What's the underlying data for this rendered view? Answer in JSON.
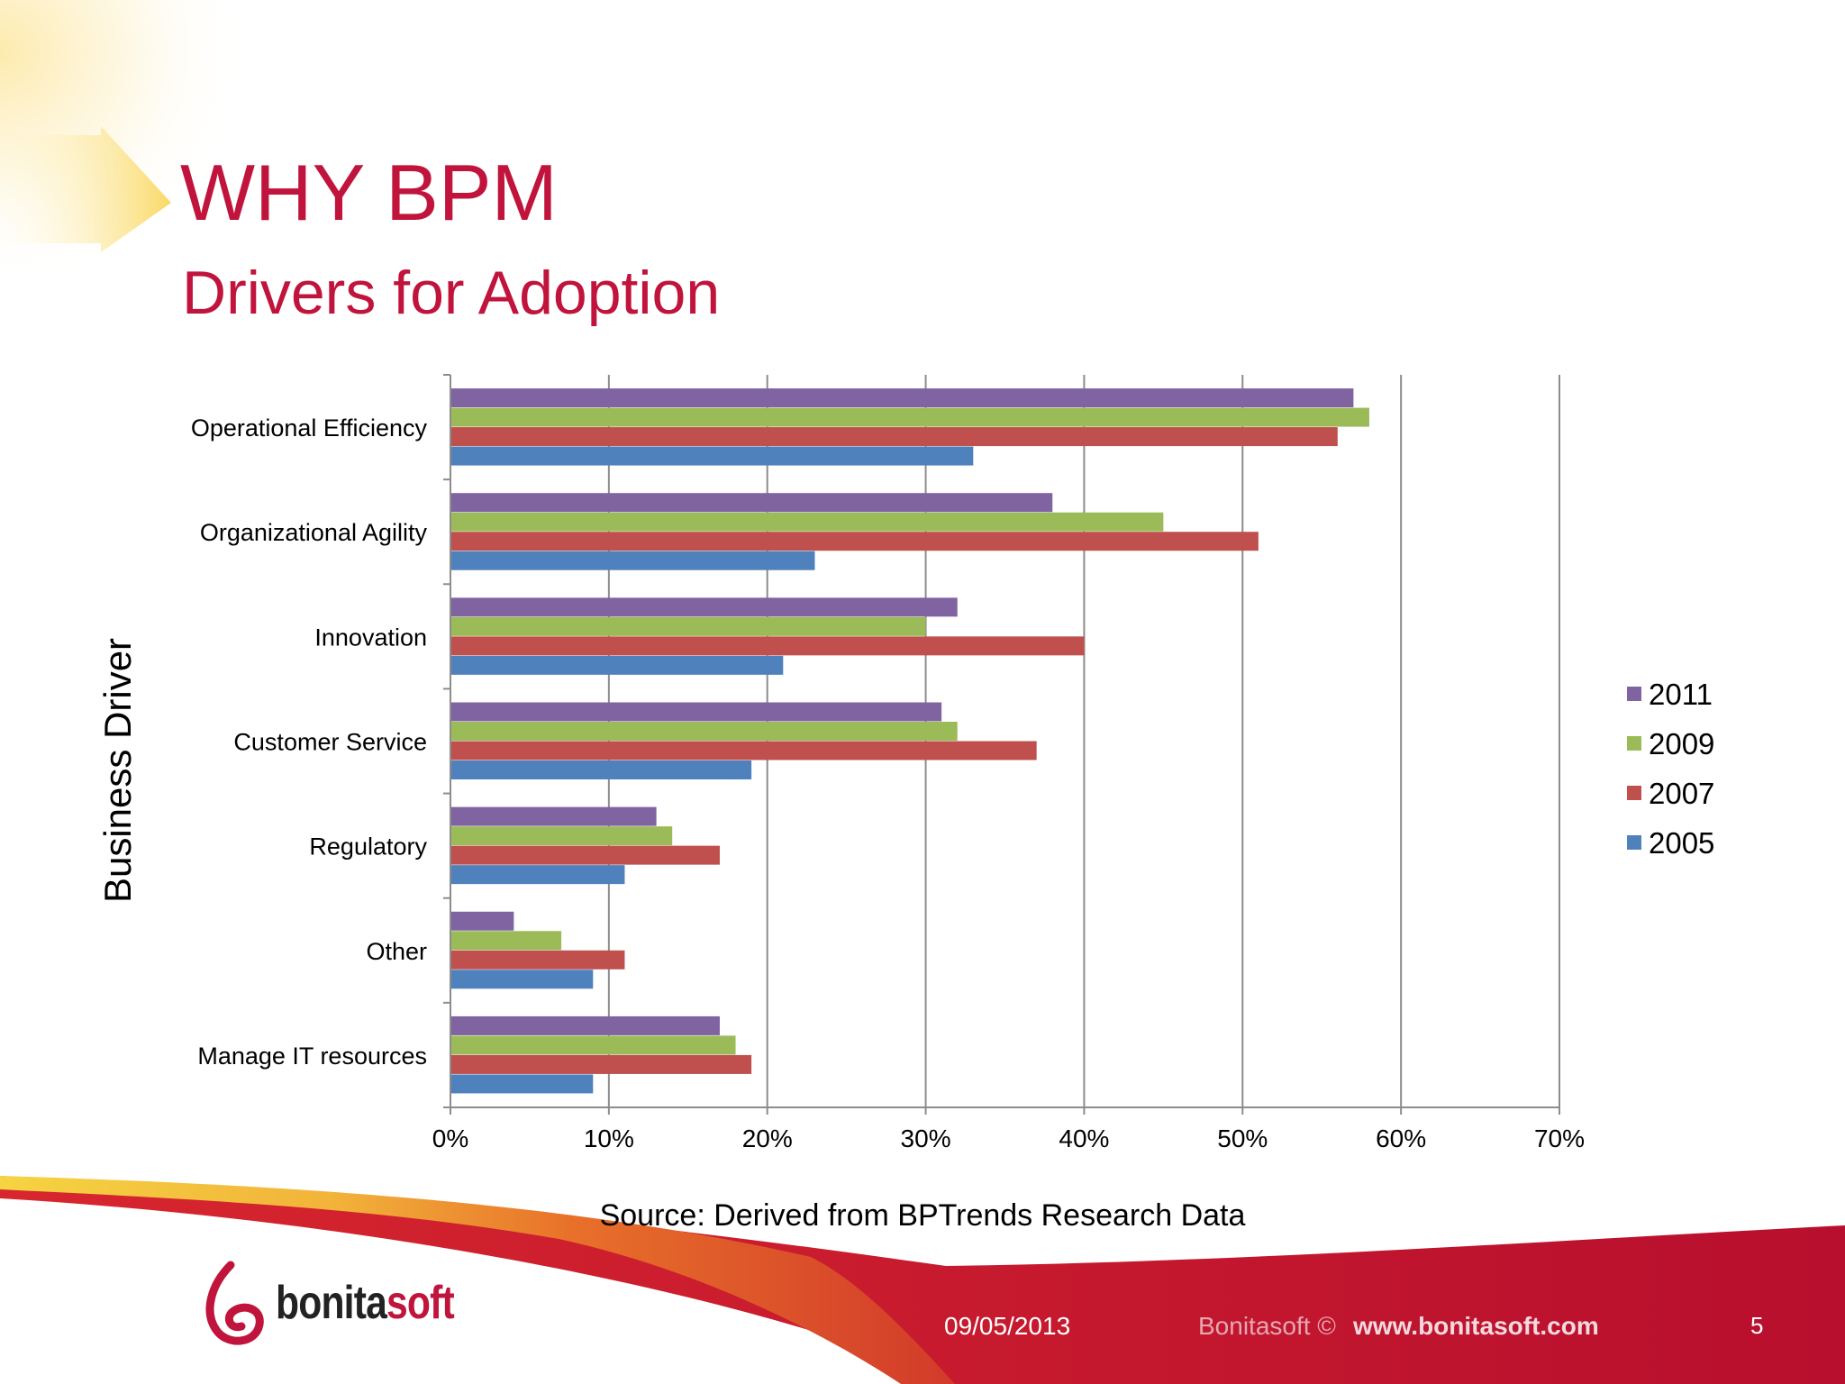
{
  "slide": {
    "title": "WHY BPM",
    "subtitle": "Drivers for Adoption",
    "source": "Source: Derived from BPTrends Research Data",
    "date": "09/05/2013",
    "copyright": "Bonitasoft ©",
    "url": "www.bonitasoft.com",
    "page_number": "5",
    "logo": {
      "part1": "bonita",
      "part2": "soft"
    }
  },
  "colors": {
    "title": "#c0143c",
    "footer_band": "#c0143c"
  },
  "chart_data": {
    "type": "bar",
    "orientation": "horizontal",
    "categories": [
      "Operational Efficiency",
      "Organizational Agility",
      "Innovation",
      "Customer Service",
      "Regulatory",
      "Other",
      "Manage IT resources"
    ],
    "series": [
      {
        "name": "2011",
        "color": "#8064a2",
        "values": [
          57,
          38,
          32,
          31,
          13,
          4,
          17
        ]
      },
      {
        "name": "2009",
        "color": "#9bbb59",
        "values": [
          58,
          45,
          30,
          32,
          14,
          7,
          18
        ]
      },
      {
        "name": "2007",
        "color": "#c0504d",
        "values": [
          56,
          51,
          40,
          37,
          17,
          11,
          19
        ]
      },
      {
        "name": "2005",
        "color": "#4f81bd",
        "values": [
          33,
          23,
          21,
          19,
          11,
          9,
          9
        ]
      }
    ],
    "ylabel": "Business Driver",
    "xlabel": "",
    "xlim": [
      0,
      70
    ],
    "x_ticks": [
      "0%",
      "10%",
      "20%",
      "30%",
      "40%",
      "50%",
      "60%",
      "70%"
    ],
    "grid": "vertical",
    "legend_position": "right"
  }
}
